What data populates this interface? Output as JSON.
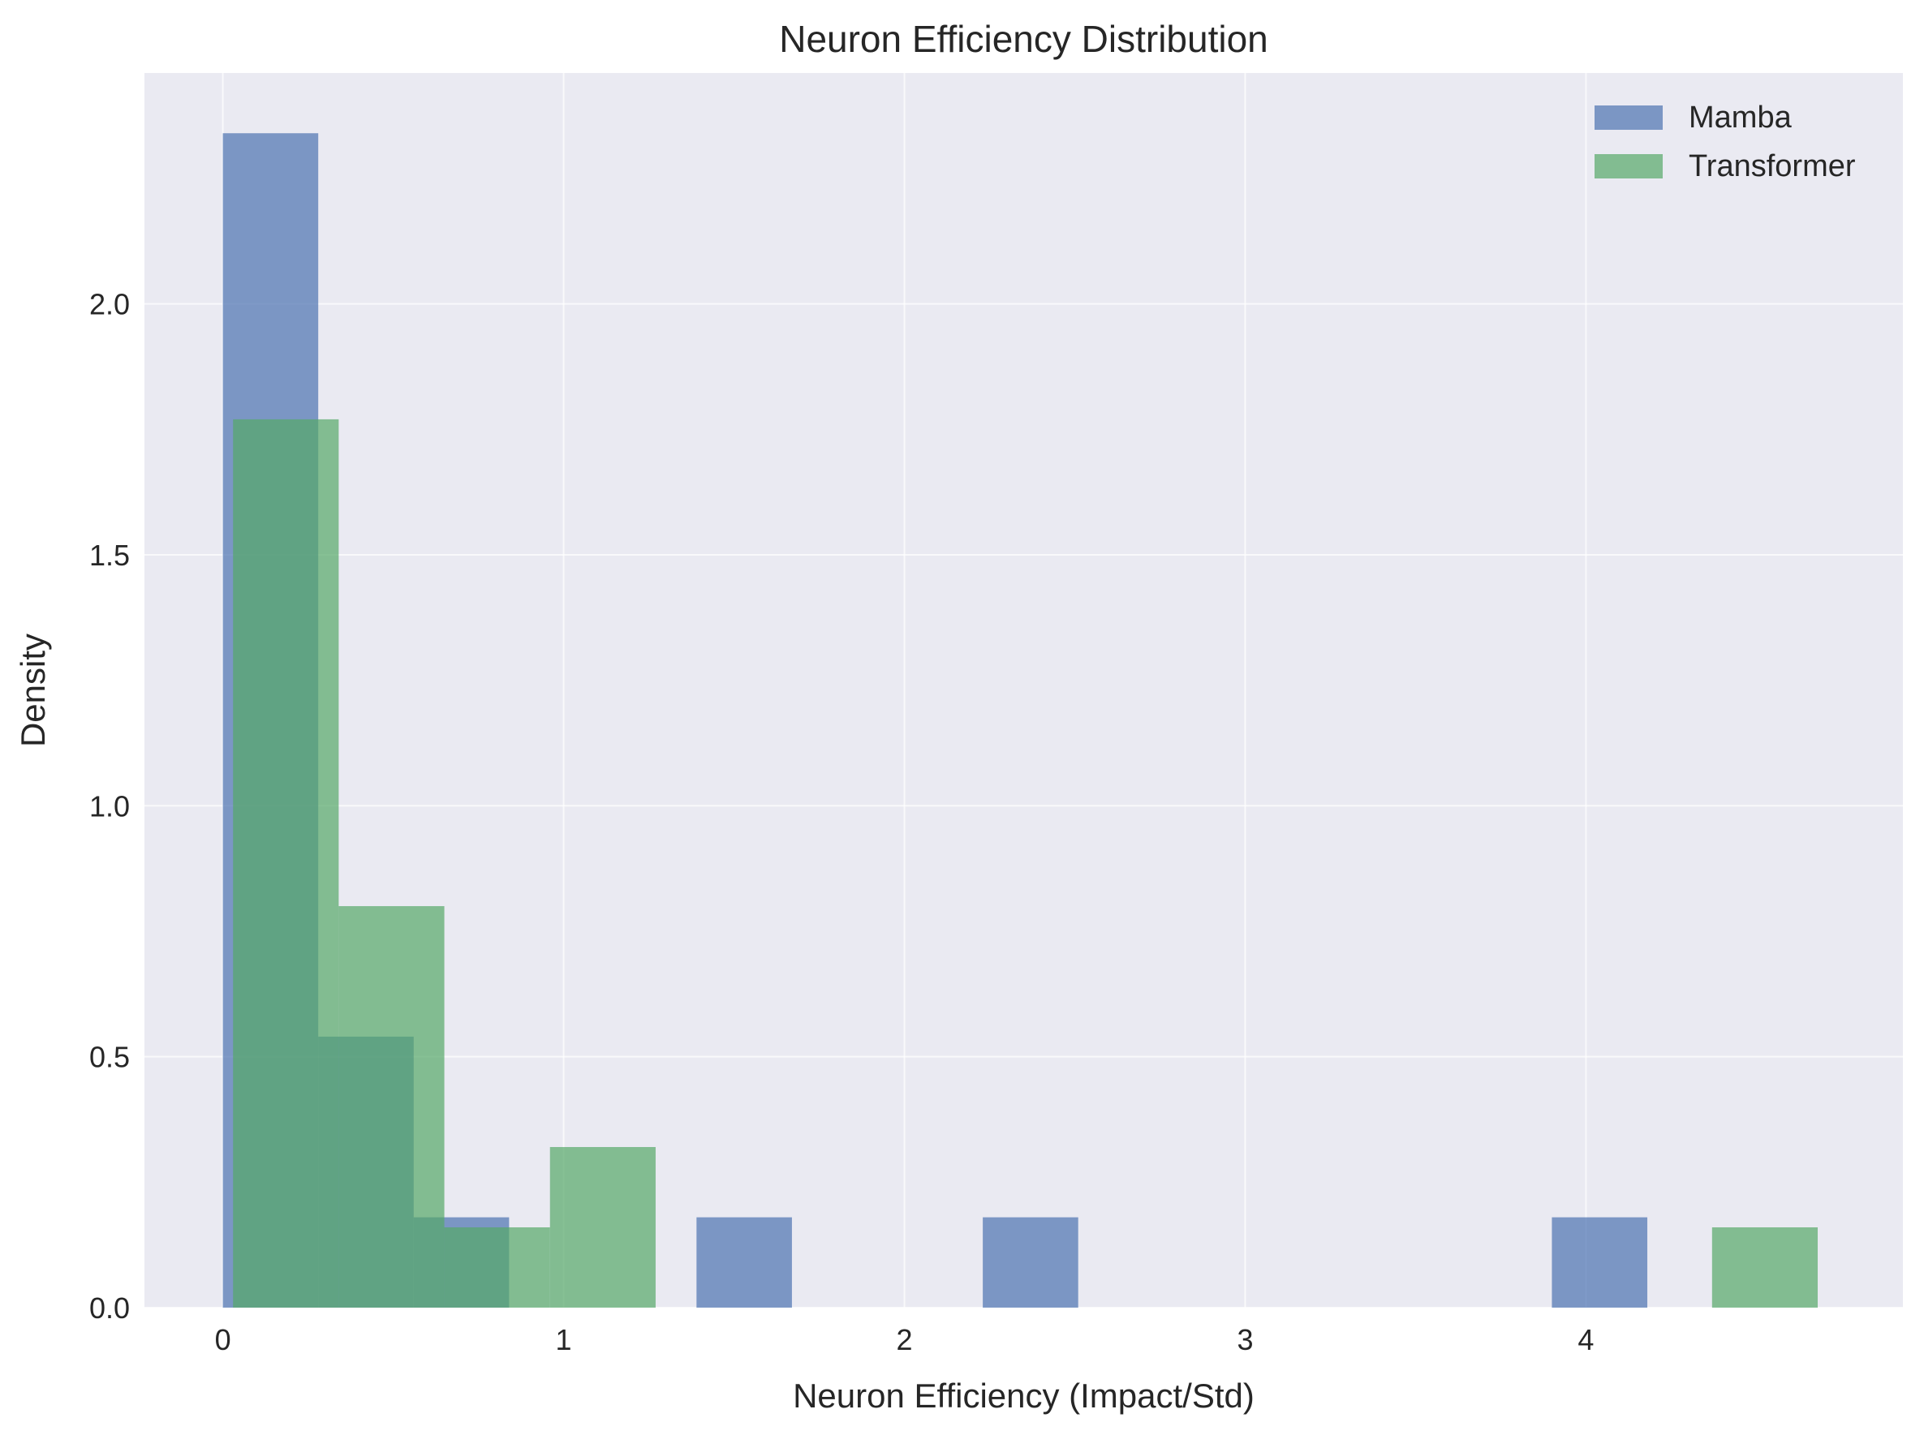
{
  "chart_data": {
    "type": "bar",
    "title": "Neuron Efficiency Distribution",
    "xlabel": "Neuron Efficiency (Impact/Std)",
    "ylabel": "Density",
    "xlim": [
      -0.23,
      4.93
    ],
    "ylim": [
      0,
      2.46
    ],
    "x_ticks": [
      0,
      1,
      2,
      3,
      4
    ],
    "x_tick_labels": [
      "0",
      "1",
      "2",
      "3",
      "4"
    ],
    "y_ticks": [
      0.0,
      0.5,
      1.0,
      1.5,
      2.0
    ],
    "y_tick_labels": [
      "0.0",
      "0.5",
      "1.0",
      "1.5",
      "2.0"
    ],
    "grid": true,
    "legend_position": "top-right",
    "series": [
      {
        "name": "Mamba",
        "color": "#4c72b0",
        "opacity": 0.7,
        "bins": [
          {
            "x0": 0.0,
            "x1": 0.28,
            "value": 2.34
          },
          {
            "x0": 0.28,
            "x1": 0.56,
            "value": 0.54
          },
          {
            "x0": 0.56,
            "x1": 0.84,
            "value": 0.18
          },
          {
            "x0": 1.39,
            "x1": 1.67,
            "value": 0.18
          },
          {
            "x0": 2.23,
            "x1": 2.51,
            "value": 0.18
          },
          {
            "x0": 3.9,
            "x1": 4.18,
            "value": 0.18
          }
        ]
      },
      {
        "name": "Transformer",
        "color": "#55a868",
        "opacity": 0.7,
        "bins": [
          {
            "x0": 0.03,
            "x1": 0.34,
            "value": 1.77
          },
          {
            "x0": 0.34,
            "x1": 0.65,
            "value": 0.8
          },
          {
            "x0": 0.65,
            "x1": 0.96,
            "value": 0.16
          },
          {
            "x0": 0.96,
            "x1": 1.27,
            "value": 0.32
          },
          {
            "x0": 4.37,
            "x1": 4.68,
            "value": 0.16
          }
        ]
      }
    ]
  }
}
